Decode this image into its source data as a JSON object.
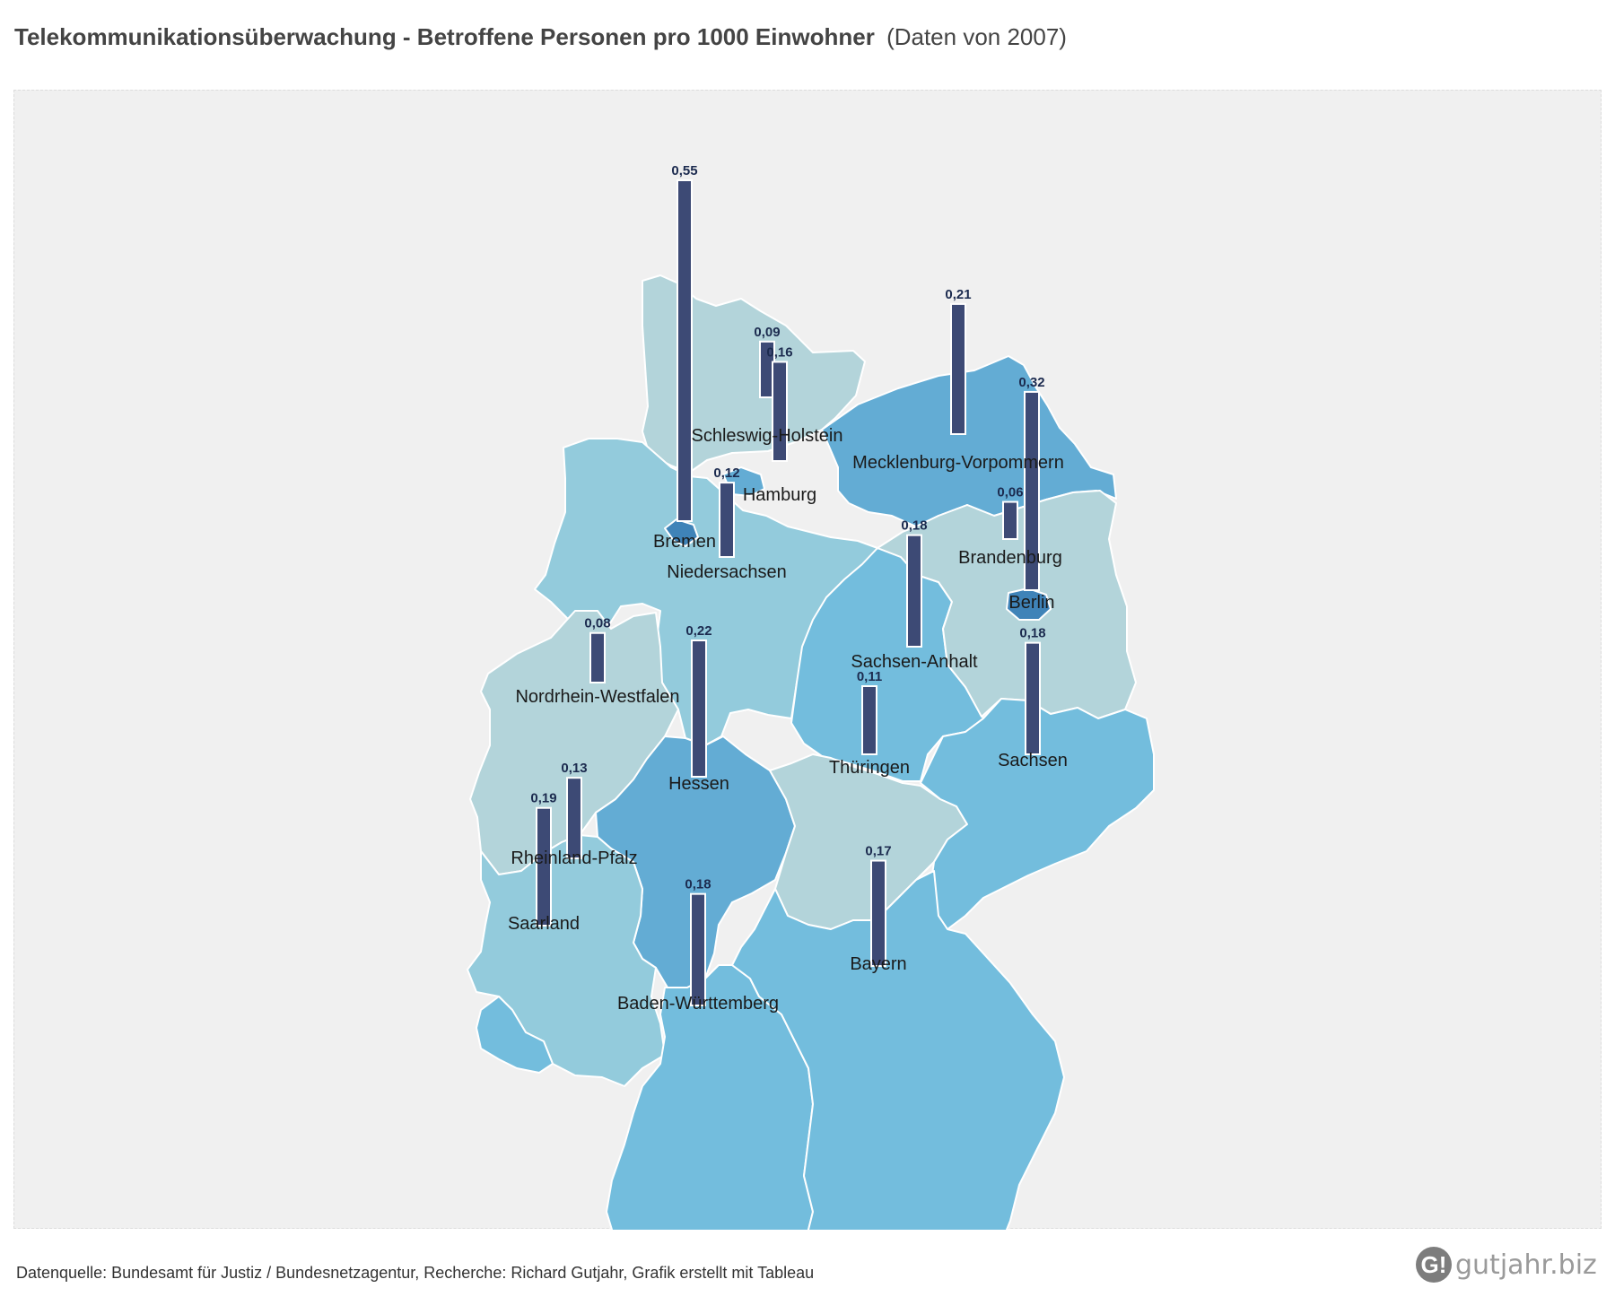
{
  "header": {
    "title": "Telekommunikationsüberwachung - Betroffene Personen pro 1000 Einwohner",
    "subtitle": "(Daten von 2007)"
  },
  "footer": {
    "source": "Datenquelle: Bundesamt für Justiz / Bundesnetzagentur, Recherche: Richard Gutjahr, Grafik erstellt mit Tableau",
    "logo_mark": "G!",
    "logo_text": "gutjahr.biz"
  },
  "colors": {
    "bar": "#3d4a75",
    "panel": "#f0f0f0",
    "light": "#b3d4da",
    "mid_light": "#93cbdc",
    "mid": "#73bddd",
    "dark": "#63acd4",
    "darkest": "#3f83b8"
  },
  "states": [
    {
      "name": "Schleswig-Holstein",
      "value": "0,09",
      "num": 0.09
    },
    {
      "name": "Hamburg",
      "value": "0,16",
      "num": 0.16
    },
    {
      "name": "Mecklenburg-Vorpommern",
      "value": "0,21",
      "num": 0.21
    },
    {
      "name": "Bremen",
      "value": "0,55",
      "num": 0.55
    },
    {
      "name": "Niedersachsen",
      "value": "0,12",
      "num": 0.12
    },
    {
      "name": "Brandenburg",
      "value": "0,06",
      "num": 0.06
    },
    {
      "name": "Berlin",
      "value": "0,32",
      "num": 0.32
    },
    {
      "name": "Sachsen-Anhalt",
      "value": "0,18",
      "num": 0.18
    },
    {
      "name": "Nordrhein-Westfalen",
      "value": "0,08",
      "num": 0.08
    },
    {
      "name": "Hessen",
      "value": "0,22",
      "num": 0.22
    },
    {
      "name": "Thüringen",
      "value": "0,11",
      "num": 0.11
    },
    {
      "name": "Sachsen",
      "value": "0,18",
      "num": 0.18
    },
    {
      "name": "Rheinland-Pfalz",
      "value": "0,13",
      "num": 0.13
    },
    {
      "name": "Saarland",
      "value": "0,19",
      "num": 0.19
    },
    {
      "name": "Baden-Württemberg",
      "value": "0,18",
      "num": 0.18
    },
    {
      "name": "Bayern",
      "value": "0,17",
      "num": 0.17
    }
  ]
}
